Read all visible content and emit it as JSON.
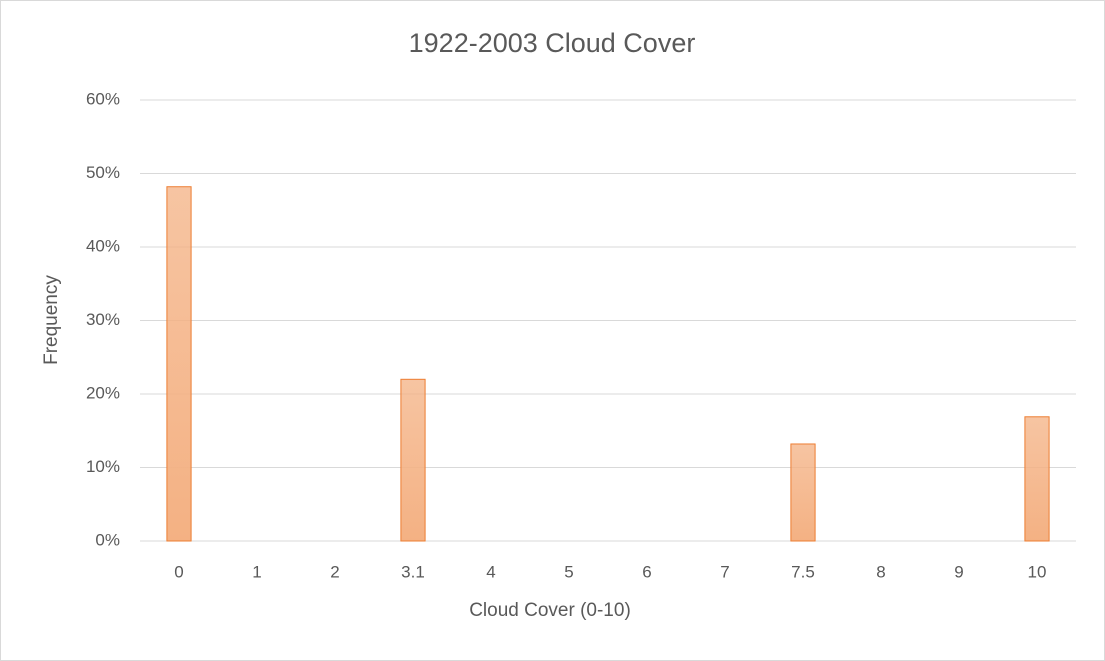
{
  "chart_data": {
    "type": "bar",
    "title": "1922-2003 Cloud Cover",
    "x_label": "Cloud Cover (0-10)",
    "y_label": "Frequency",
    "categories": [
      "0",
      "1",
      "2",
      "3.1",
      "4",
      "5",
      "6",
      "7",
      "7.5",
      "8",
      "9",
      "10"
    ],
    "values": [
      48.2,
      0,
      0,
      22,
      0,
      0,
      0,
      0,
      13.2,
      0,
      0,
      16.9
    ],
    "color": "#f4b183",
    "edge_color": "#ed7d31",
    "ylim": [
      0,
      60
    ],
    "yticks": [
      {
        "value": 0,
        "label": "0%"
      },
      {
        "value": 10,
        "label": "10%"
      },
      {
        "value": 20,
        "label": "20%"
      },
      {
        "value": 30,
        "label": "30%"
      },
      {
        "value": 40,
        "label": "40%"
      },
      {
        "value": 50,
        "label": "50%"
      },
      {
        "value": 60,
        "label": "60%"
      }
    ],
    "grid": true
  }
}
